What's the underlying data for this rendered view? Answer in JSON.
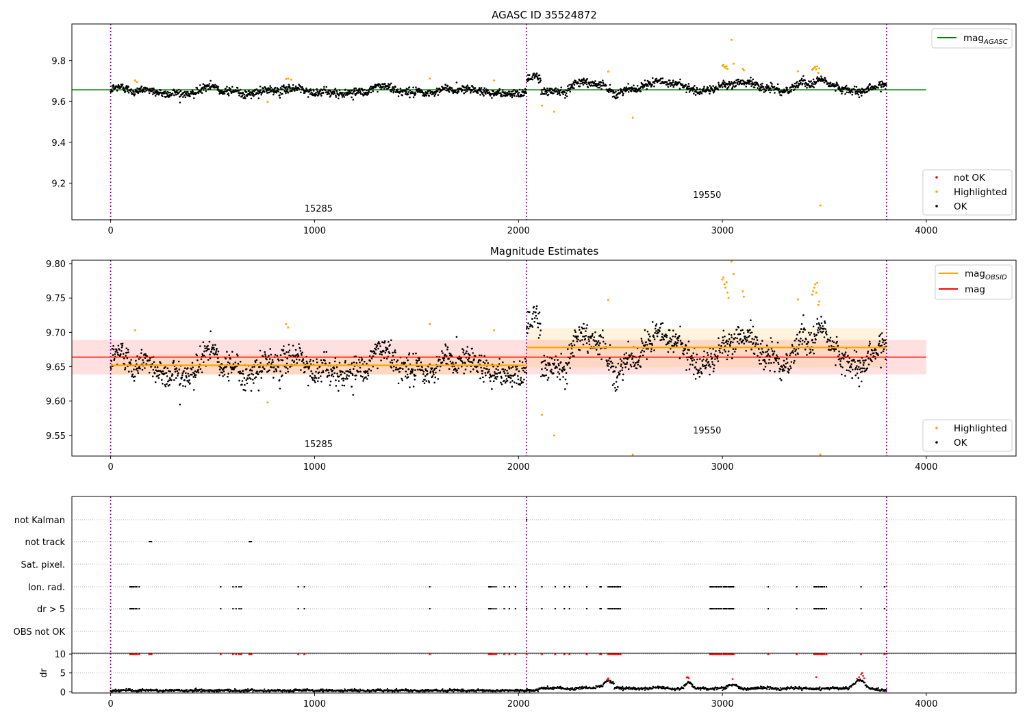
{
  "chart_data": [
    {
      "type": "scatter",
      "title": "AGASC ID 35524872",
      "xlabel": "",
      "ylabel": "",
      "xlim": [
        -190,
        4440
      ],
      "ylim": [
        9.02,
        9.98
      ],
      "xticks": [
        0,
        1000,
        2000,
        3000,
        4000
      ],
      "yticks": [
        9.2,
        9.4,
        9.6,
        9.8
      ],
      "obsid_boundaries": [
        0,
        2040,
        3805
      ],
      "obsid_labels": [
        {
          "text": "15285",
          "x": 1020,
          "y": 9.06
        },
        {
          "text": "19550",
          "x": 2925,
          "y": 9.127
        }
      ],
      "legend_lines": [
        {
          "name": "mag",
          "subscript": "AGASC",
          "color": "#008000"
        }
      ],
      "legend_markers": [
        {
          "name": "not OK",
          "color": "#ff0000"
        },
        {
          "name": "Highlighted",
          "color": "#ffa500"
        },
        {
          "name": "OK",
          "color": "#000000"
        }
      ],
      "reference_line": {
        "name": "mag_AGASC",
        "y": 9.657,
        "x": [
          -190,
          4000
        ],
        "color": "#008000"
      },
      "series": [
        {
          "name": "OK",
          "color": "#000000",
          "source": "shared OK light curve"
        },
        {
          "name": "Highlighted",
          "color": "#ffa500",
          "points": [
            [
              120,
              9.703
            ],
            [
              128,
              9.695
            ],
            [
              770,
              9.598
            ],
            [
              860,
              9.71
            ],
            [
              870,
              9.712
            ],
            [
              885,
              9.707
            ],
            [
              1565,
              9.712
            ],
            [
              1880,
              9.703
            ],
            [
              2115,
              9.58
            ],
            [
              2175,
              9.55
            ],
            [
              2440,
              9.747
            ],
            [
              2560,
              9.52
            ],
            [
              3000,
              9.775
            ],
            [
              3005,
              9.78
            ],
            [
              3010,
              9.77
            ],
            [
              3015,
              9.765
            ],
            [
              3020,
              9.773
            ],
            [
              3025,
              9.76
            ],
            [
              3045,
              9.902
            ],
            [
              3055,
              9.785
            ],
            [
              3100,
              9.76
            ],
            [
              3105,
              9.752
            ],
            [
              3370,
              9.748
            ],
            [
              3440,
              9.755
            ],
            [
              3445,
              9.76
            ],
            [
              3450,
              9.765
            ],
            [
              3455,
              9.77
            ],
            [
              3460,
              9.758
            ],
            [
              3465,
              9.772
            ],
            [
              3470,
              9.74
            ],
            [
              3475,
              9.762
            ],
            [
              3480,
              9.09
            ]
          ]
        }
      ]
    },
    {
      "type": "scatter",
      "title": "Magnitude Estimates",
      "xlabel": "",
      "ylabel": "",
      "xlim": [
        -190,
        4440
      ],
      "ylim": [
        9.52,
        9.805
      ],
      "xticks": [
        0,
        1000,
        2000,
        3000,
        4000
      ],
      "yticks": [
        9.55,
        9.6,
        9.65,
        9.7,
        9.75,
        9.8
      ],
      "obsid_boundaries": [
        0,
        2040,
        3805
      ],
      "obsid_labels": [
        {
          "text": "15285",
          "x": 1020,
          "y": 9.533
        },
        {
          "text": "19550",
          "x": 2925,
          "y": 9.553
        }
      ],
      "legend_lines": [
        {
          "name": "mag",
          "subscript": "OBSID",
          "color": "#ffa500"
        },
        {
          "name": "mag",
          "subscript": "",
          "color": "#ff0000"
        }
      ],
      "legend_markers": [
        {
          "name": "Highlighted",
          "color": "#ffa500"
        },
        {
          "name": "OK",
          "color": "#000000"
        }
      ],
      "mag_line": {
        "y": 9.664,
        "band": [
          9.639,
          9.689
        ],
        "x": [
          -190,
          4000
        ],
        "color": "#ff0000"
      },
      "obsid_mags": [
        {
          "x": [
            0,
            2040
          ],
          "y": 9.652,
          "band": [
            9.638,
            9.668
          ]
        },
        {
          "x": [
            2040,
            3805
          ],
          "y": 9.678,
          "band": [
            9.649,
            9.706
          ]
        }
      ],
      "series": [
        {
          "name": "OK",
          "color": "#000000",
          "source": "shared OK light curve"
        },
        {
          "name": "Highlighted",
          "color": "#ffa500",
          "points": [
            [
              120,
              9.703
            ],
            [
              770,
              9.598
            ],
            [
              860,
              9.712
            ],
            [
              870,
              9.707
            ],
            [
              1565,
              9.712
            ],
            [
              1880,
              9.703
            ],
            [
              2115,
              9.58
            ],
            [
              2175,
              9.55
            ],
            [
              2440,
              9.747
            ],
            [
              2560,
              9.522
            ],
            [
              3000,
              9.777
            ],
            [
              3005,
              9.78
            ],
            [
              3010,
              9.77
            ],
            [
              3015,
              9.765
            ],
            [
              3020,
              9.773
            ],
            [
              3025,
              9.758
            ],
            [
              3030,
              9.75
            ],
            [
              3045,
              9.803
            ],
            [
              3055,
              9.785
            ],
            [
              3100,
              9.76
            ],
            [
              3105,
              9.752
            ],
            [
              3370,
              9.748
            ],
            [
              3440,
              9.755
            ],
            [
              3445,
              9.76
            ],
            [
              3450,
              9.765
            ],
            [
              3455,
              9.77
            ],
            [
              3460,
              9.758
            ],
            [
              3465,
              9.772
            ],
            [
              3470,
              9.74
            ],
            [
              3475,
              9.745
            ],
            [
              3480,
              9.522
            ]
          ]
        }
      ]
    },
    {
      "type": "scatter",
      "title": "",
      "xlabel": "",
      "ylabel": "",
      "xlim": [
        -190,
        4440
      ],
      "categories": [
        "not Kalman",
        "not track",
        "Sat. pixel.",
        "Ion. rad.",
        "dr > 5",
        "OBS not OK"
      ],
      "obsid_boundaries": [
        0,
        2040,
        3805
      ],
      "flags": {
        "not Kalman": [
          2040
        ],
        "not track": [
          190,
          195,
          200,
          680,
          685,
          690
        ],
        "Sat. pixel.": [],
        "Ion. rad.": [
          95,
          100,
          105,
          112,
          120,
          128,
          140,
          540,
          600,
          615,
          630,
          640,
          920,
          950,
          1565,
          1855,
          1862,
          1870,
          1880,
          1890,
          1930,
          1955,
          1985,
          2040,
          2115,
          2180,
          2225,
          2250,
          2335,
          2400,
          2405,
          2440,
          2448,
          2455,
          2462,
          2470,
          2478,
          2485,
          2492,
          2500,
          2940,
          2945,
          2950,
          2958,
          2965,
          2972,
          2980,
          2988,
          2995,
          3005,
          3010,
          3015,
          3020,
          3028,
          3035,
          3040,
          3045,
          3050,
          3055,
          3225,
          3365,
          3450,
          3455,
          3462,
          3470,
          3478,
          3485,
          3492,
          3500,
          3510,
          3680,
          3795
        ],
        "dr > 5": [
          95,
          100,
          105,
          112,
          120,
          128,
          140,
          540,
          600,
          615,
          630,
          640,
          920,
          950,
          1565,
          1855,
          1862,
          1870,
          1880,
          1890,
          1930,
          1955,
          1985,
          2040,
          2115,
          2180,
          2225,
          2250,
          2335,
          2400,
          2405,
          2440,
          2448,
          2455,
          2462,
          2470,
          2478,
          2485,
          2492,
          2500,
          2940,
          2945,
          2950,
          2958,
          2965,
          2972,
          2980,
          2988,
          2995,
          3005,
          3010,
          3015,
          3020,
          3028,
          3035,
          3040,
          3045,
          3050,
          3055,
          3225,
          3365,
          3450,
          3455,
          3462,
          3470,
          3478,
          3485,
          3492,
          3500,
          3510,
          3680,
          3795
        ],
        "OBS not OK": []
      }
    },
    {
      "type": "scatter",
      "title": "",
      "xlabel": "",
      "ylabel": "dr",
      "xlim": [
        -190,
        4440
      ],
      "ylim": [
        -0.3,
        10.2
      ],
      "xticks": [
        0,
        1000,
        2000,
        3000,
        4000
      ],
      "yticks": [
        0,
        5,
        10
      ],
      "obsid_boundaries": [
        0,
        2040,
        3805
      ],
      "series": [
        {
          "name": "OK",
          "color": "#000000",
          "source": "generated dr trace, 0–2.5 with bumps near 2440, 2830, 3050, 3680"
        },
        {
          "name": "not OK",
          "color": "#ff0000",
          "points": [
            [
              2435,
              3.2
            ],
            [
              2440,
              3.6
            ],
            [
              2445,
              3.0
            ],
            [
              2825,
              3.8
            ],
            [
              2830,
              3.9
            ],
            [
              2835,
              3.6
            ],
            [
              3050,
              3.4
            ],
            [
              3460,
              3.9
            ],
            [
              3660,
              3.5
            ],
            [
              3670,
              3.9
            ],
            [
              3680,
              4.6
            ],
            [
              3685,
              5.0
            ],
            [
              3690,
              4.2
            ],
            [
              3695,
              3.6
            ]
          ]
        }
      ],
      "clipped_markers": {
        "y": 10,
        "color": "#ff0000",
        "x": [
          95,
          100,
          105,
          112,
          120,
          128,
          140,
          190,
          195,
          200,
          540,
          600,
          615,
          630,
          640,
          680,
          685,
          690,
          920,
          950,
          1565,
          1855,
          1862,
          1870,
          1880,
          1890,
          1930,
          1955,
          1985,
          2040,
          2115,
          2180,
          2225,
          2250,
          2335,
          2400,
          2405,
          2440,
          2448,
          2455,
          2462,
          2470,
          2478,
          2485,
          2492,
          2500,
          2940,
          2945,
          2950,
          2958,
          2965,
          2972,
          2980,
          2988,
          2995,
          3005,
          3010,
          3015,
          3020,
          3028,
          3035,
          3040,
          3045,
          3050,
          3055,
          3225,
          3365,
          3450,
          3455,
          3462,
          3470,
          3478,
          3485,
          3492,
          3500,
          3510,
          3680,
          3795
        ]
      }
    }
  ]
}
